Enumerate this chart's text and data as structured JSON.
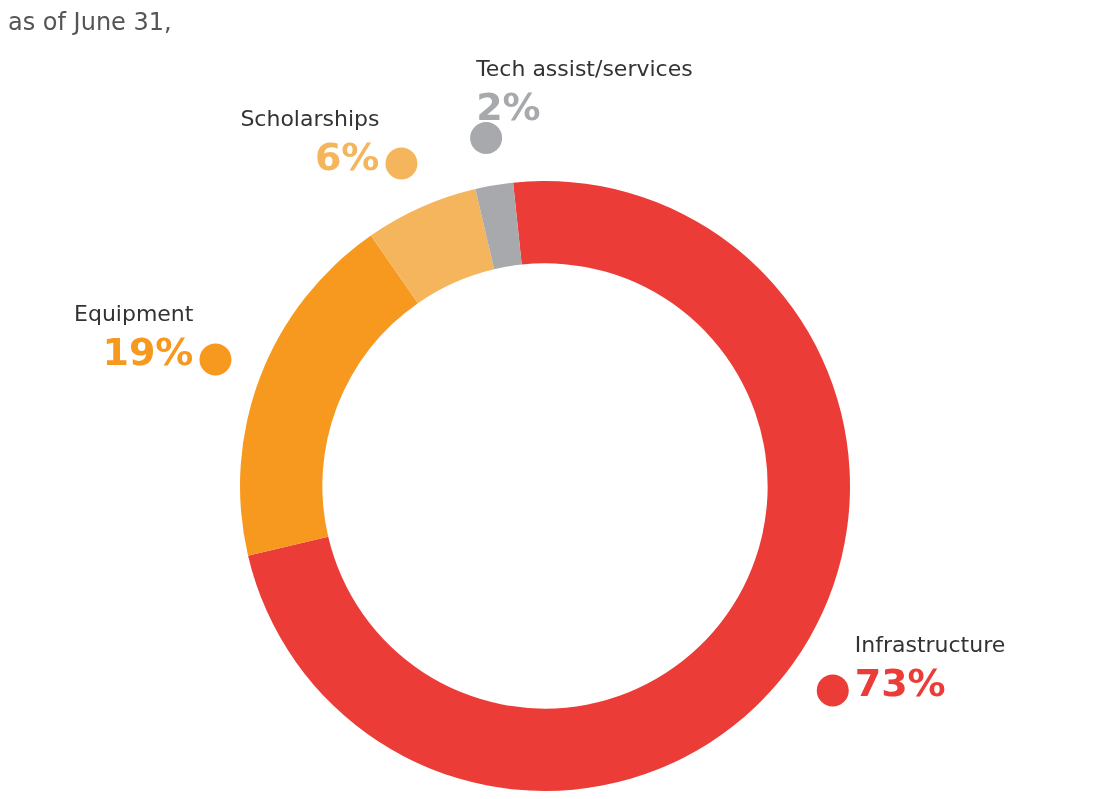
{
  "chart_data": {
    "type": "donut",
    "subtitle": "as of June 31,",
    "categories": [
      "Infrastructure",
      "Equipment",
      "Scholarships",
      "Tech assist/services"
    ],
    "values": [
      73,
      19,
      6,
      2
    ],
    "colors": [
      "#ec3c37",
      "#f7981f",
      "#f5b55d",
      "#a7a9ac"
    ],
    "value_labels": [
      "73%",
      "19%",
      "6%",
      "2%"
    ]
  }
}
